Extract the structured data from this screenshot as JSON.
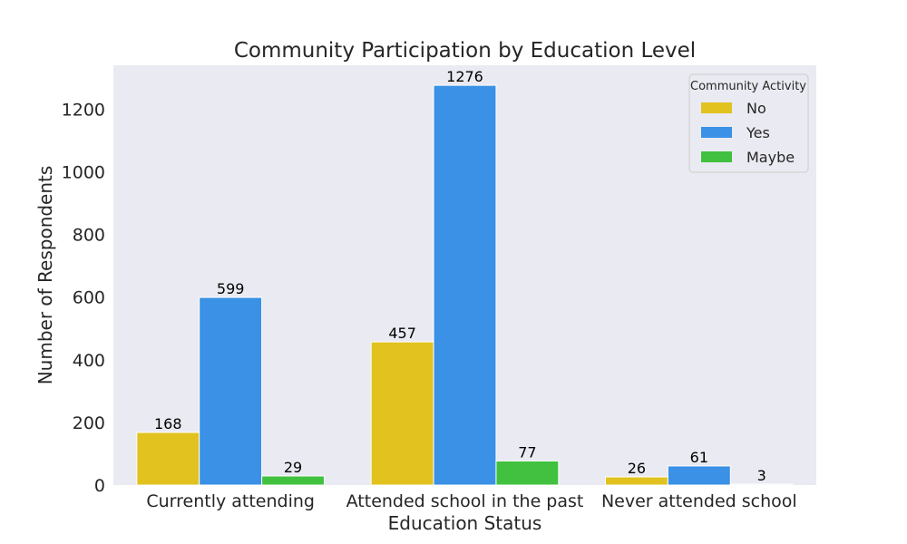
{
  "chart_data": {
    "type": "bar",
    "title": "Community Participation by Education Level",
    "xlabel": "Education Status",
    "ylabel": "Number of Respondents",
    "categories": [
      "Currently attending",
      "Attended school in the past",
      "Never attended school"
    ],
    "series": [
      {
        "name": "No",
        "values": [
          168,
          457,
          26
        ],
        "color": "#e1c21f"
      },
      {
        "name": "Yes",
        "values": [
          599,
          1276,
          61
        ],
        "color": "#3a91e5"
      },
      {
        "name": "Maybe",
        "values": [
          29,
          77,
          3
        ],
        "color": "#41c13f"
      }
    ],
    "ylim": [
      0,
      1340
    ],
    "yticks": [
      0,
      200,
      400,
      600,
      800,
      1000,
      1200
    ],
    "legend": {
      "title": "Community Activity",
      "placement": "top-right"
    },
    "grid": false,
    "background": "#eaeaf2"
  }
}
